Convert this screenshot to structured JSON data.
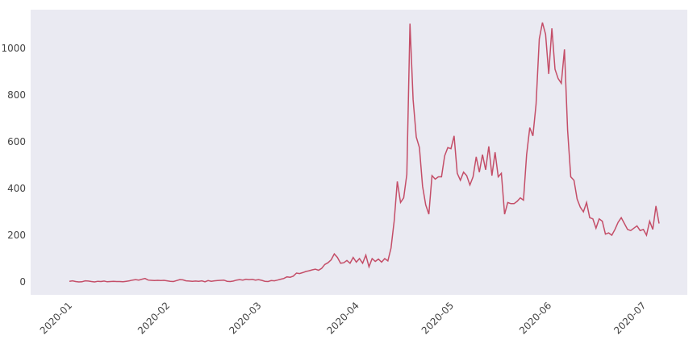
{
  "chart_data": {
    "type": "line",
    "categories": [
      "2020-01",
      null,
      null,
      null,
      null,
      null,
      null,
      null,
      null,
      null,
      null,
      null,
      null,
      null,
      null,
      null,
      null,
      null,
      null,
      null,
      null,
      null,
      null,
      null,
      null,
      null,
      null,
      null,
      null,
      null,
      null,
      "2020-02",
      null,
      null,
      null,
      null,
      null,
      null,
      null,
      null,
      null,
      null,
      null,
      null,
      null,
      null,
      null,
      null,
      null,
      null,
      null,
      null,
      null,
      null,
      null,
      null,
      null,
      null,
      null,
      null,
      "2020-03",
      null,
      null,
      null,
      null,
      null,
      null,
      null,
      null,
      null,
      null,
      null,
      null,
      null,
      null,
      null,
      null,
      null,
      null,
      null,
      null,
      null,
      null,
      null,
      null,
      null,
      null,
      null,
      null,
      null,
      null,
      "2020-04",
      null,
      null,
      null,
      null,
      null,
      null,
      null,
      null,
      null,
      null,
      null,
      null,
      null,
      null,
      null,
      null,
      null,
      null,
      null,
      null,
      null,
      null,
      null,
      null,
      null,
      null,
      null,
      null,
      null,
      "2020-05",
      null,
      null,
      null,
      null,
      null,
      null,
      null,
      null,
      null,
      null,
      null,
      null,
      null,
      null,
      null,
      null,
      null,
      null,
      null,
      null,
      null,
      null,
      null,
      null,
      null,
      null,
      null,
      null,
      null,
      null,
      "2020-06",
      null,
      null,
      null,
      null,
      null,
      null,
      null,
      null,
      null,
      null,
      null,
      null,
      null,
      null,
      null,
      null,
      null,
      null,
      null,
      null,
      null,
      null,
      null,
      null,
      null,
      null,
      null,
      null,
      null,
      "2020-07",
      null,
      null,
      null,
      null,
      null
    ],
    "series": [
      {
        "color": "#c44e68",
        "values": [
          3,
          5,
          2,
          0,
          1,
          5,
          4,
          2,
          0,
          3,
          2,
          4,
          1,
          2,
          3,
          2,
          2,
          1,
          3,
          5,
          8,
          10,
          8,
          12,
          15,
          8,
          7,
          6,
          7,
          6,
          7,
          5,
          3,
          2,
          6,
          10,
          9,
          5,
          4,
          3,
          4,
          3,
          5,
          1,
          6,
          3,
          5,
          6,
          7,
          8,
          3,
          2,
          4,
          8,
          10,
          8,
          12,
          10,
          11,
          8,
          10,
          7,
          3,
          2,
          6,
          5,
          8,
          12,
          15,
          22,
          20,
          25,
          38,
          36,
          40,
          45,
          48,
          52,
          55,
          50,
          58,
          75,
          82,
          95,
          120,
          105,
          80,
          82,
          92,
          80,
          105,
          85,
          100,
          80,
          115,
          65,
          100,
          88,
          98,
          85,
          100,
          90,
          145,
          260,
          430,
          340,
          360,
          460,
          1105,
          780,
          620,
          575,
          410,
          330,
          290,
          455,
          440,
          450,
          450,
          540,
          575,
          570,
          625,
          465,
          435,
          470,
          455,
          415,
          450,
          535,
          470,
          545,
          480,
          580,
          455,
          555,
          450,
          465,
          290,
          340,
          335,
          335,
          345,
          360,
          350,
          545,
          660,
          625,
          760,
          1040,
          1110,
          1060,
          890,
          1085,
          910,
          870,
          850,
          995,
          650,
          450,
          435,
          355,
          320,
          300,
          340,
          275,
          270,
          230,
          270,
          260,
          205,
          210,
          200,
          225,
          255,
          275,
          250,
          225,
          220,
          230,
          240,
          220,
          225,
          200,
          260,
          225,
          325,
          250
        ]
      }
    ],
    "ylim": [
      -55,
      1165
    ],
    "yticks": [
      0,
      200,
      400,
      600,
      800,
      1000
    ]
  }
}
